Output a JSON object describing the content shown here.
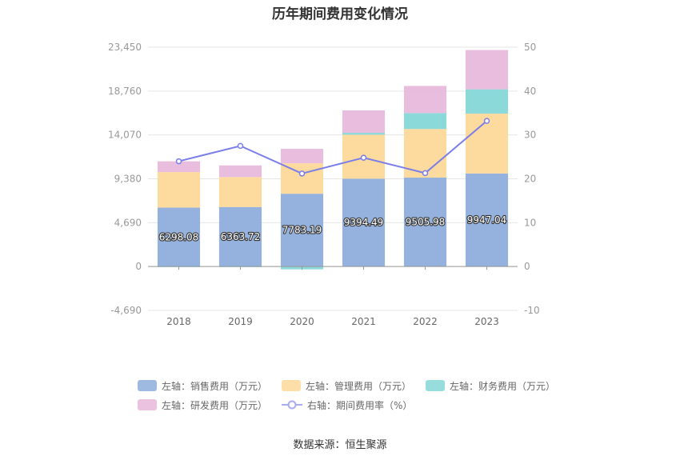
{
  "title": "历年期间费用变化情况",
  "source": "数据来源：恒生聚源",
  "colors": {
    "sales": "#8eaedb",
    "admin": "#fdd899",
    "finance": "#86d7d8",
    "rd": "#e7b9db",
    "rate": "#7a7ee8"
  },
  "legend": {
    "sales": "左轴：销售费用（万元）",
    "admin": "左轴：管理费用（万元）",
    "finance": "左轴：财务费用（万元）",
    "rd": "左轴：研发费用（万元）",
    "rate": "右轴：期间费用率（%）"
  },
  "chart_data": {
    "type": "bar",
    "stacked": true,
    "categories": [
      "2018",
      "2019",
      "2020",
      "2021",
      "2022",
      "2023"
    ],
    "left_axis": {
      "ticks": [
        "-4,690",
        "0",
        "4,690",
        "9,380",
        "14,070",
        "18,760",
        "23,450"
      ],
      "ylim": [
        -4690,
        23450
      ]
    },
    "right_axis": {
      "ticks": [
        "-10",
        "0",
        "10",
        "20",
        "30",
        "40",
        "50"
      ],
      "ylim": [
        -10,
        50
      ]
    },
    "series": [
      {
        "name": "左轴：销售费用（万元）",
        "key": "sales",
        "axis": "left",
        "values": [
          6298.08,
          6363.72,
          7783.19,
          9394.49,
          9505.98,
          9947.04
        ],
        "labels": [
          "6298.08",
          "6363.72",
          "7783.19",
          "9394.49",
          "9505.98",
          "9947.04"
        ]
      },
      {
        "name": "左轴：管理费用（万元）",
        "key": "admin",
        "axis": "left",
        "values": [
          3800,
          3200,
          3250,
          4700,
          5200,
          6400
        ]
      },
      {
        "name": "左轴：财务费用（万元）",
        "key": "finance",
        "axis": "left",
        "values": [
          -60,
          -60,
          -300,
          200,
          1700,
          2600
        ]
      },
      {
        "name": "左轴：研发费用（万元）",
        "key": "rd",
        "axis": "left",
        "values": [
          1150,
          1250,
          1550,
          2400,
          2900,
          4200
        ]
      },
      {
        "name": "右轴：期间费用率（%）",
        "key": "rate",
        "axis": "right",
        "type": "line",
        "values": [
          24.0,
          27.5,
          21.2,
          24.8,
          21.3,
          33.2
        ]
      }
    ],
    "grid": true,
    "legend_position": "bottom"
  }
}
